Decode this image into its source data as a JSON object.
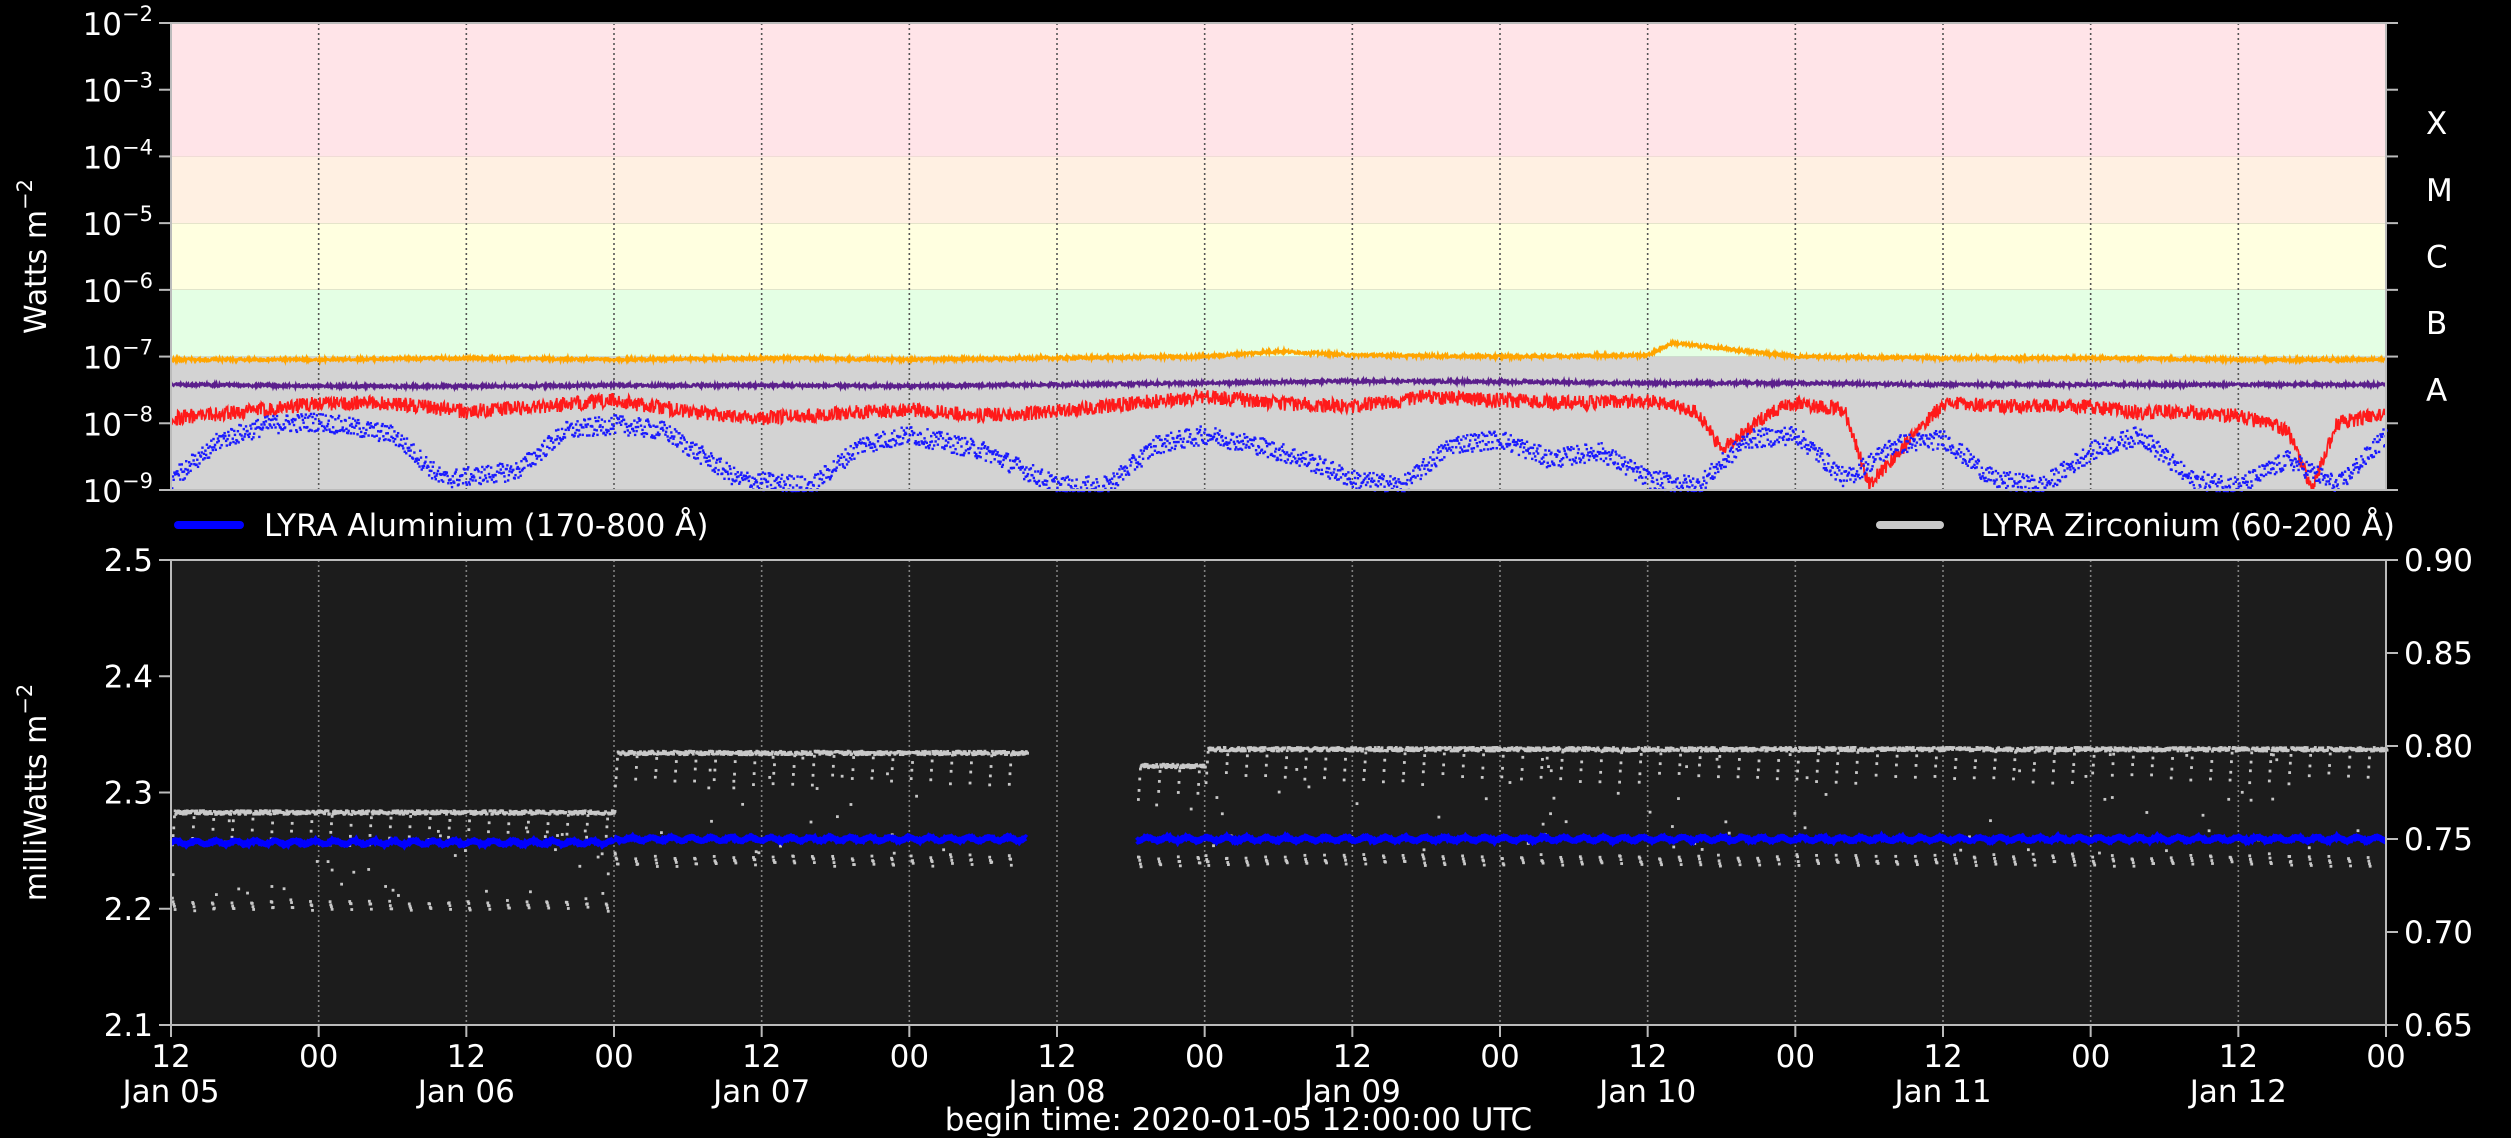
{
  "colors": {
    "background": "#000000",
    "panel_bg": "#1c1c1c",
    "axis": "#bbbbbb",
    "grid": "#808080",
    "text": "#ffffff",
    "aluminium": "#0000ff",
    "zirconium": "#c8c8c8",
    "xrs_orange": "#ffa500",
    "xrs_purple": "#5b1f8c",
    "xrs_red": "#ff1a1a",
    "xrs_blue": "#1a1aff",
    "band_X": "#ffe4e8",
    "band_M": "#fff0e2",
    "band_C": "#ffffe0",
    "band_B": "#e4ffe4",
    "band_A": "#d3d3d3"
  },
  "footer": {
    "begin_time_label": "begin time: 2020-01-05 12:00:00 UTC"
  },
  "chart_data": [
    {
      "type": "line",
      "panel": "top",
      "ylabel": "Watts m",
      "ylabel_sup": "−2",
      "yscale": "log",
      "ylim": [
        1e-09,
        0.01
      ],
      "yticks": [
        {
          "exp": "−9",
          "value": 1e-09
        },
        {
          "exp": "−8",
          "value": 1e-08
        },
        {
          "exp": "−7",
          "value": 1e-07
        },
        {
          "exp": "−6",
          "value": 1e-06
        },
        {
          "exp": "−5",
          "value": 1e-05
        },
        {
          "exp": "−4",
          "value": 0.0001
        },
        {
          "exp": "−3",
          "value": 0.001
        },
        {
          "exp": "−2",
          "value": 0.01
        }
      ],
      "ytick_base": "10",
      "xlim_hours": [
        0,
        180
      ],
      "flare_classes": [
        {
          "label": "X",
          "lower": 0.0001,
          "upper": 0.01
        },
        {
          "label": "M",
          "lower": 1e-05,
          "upper": 0.0001
        },
        {
          "label": "C",
          "lower": 1e-06,
          "upper": 1e-05
        },
        {
          "label": "B",
          "lower": 1e-07,
          "upper": 1e-06
        },
        {
          "label": "A",
          "lower": 1e-09,
          "upper": 1e-07
        }
      ],
      "series": [
        {
          "color_key": "xrs_orange",
          "hours": [
            0,
            12,
            24,
            36,
            48,
            60,
            72,
            84,
            90,
            96,
            108,
            120,
            122,
            132,
            144,
            156,
            168,
            180
          ],
          "values": [
            9e-08,
            9e-08,
            9.5e-08,
            9e-08,
            9.5e-08,
            9e-08,
            9.5e-08,
            1e-07,
            1.2e-07,
            1.05e-07,
            1e-07,
            1.05e-07,
            1.6e-07,
            1e-07,
            9.5e-08,
            9.5e-08,
            9e-08,
            9e-08
          ]
        },
        {
          "color_key": "xrs_purple",
          "hours": [
            0,
            12,
            24,
            36,
            48,
            60,
            72,
            84,
            96,
            108,
            120,
            132,
            144,
            156,
            168,
            180
          ],
          "values": [
            3.8e-08,
            3.6e-08,
            3.6e-08,
            3.7e-08,
            3.7e-08,
            3.6e-08,
            3.8e-08,
            4e-08,
            4.3e-08,
            4.2e-08,
            4e-08,
            4e-08,
            3.8e-08,
            3.8e-08,
            3.8e-08,
            3.8e-08
          ]
        },
        {
          "color_key": "xrs_red",
          "hours": [
            0,
            6,
            12,
            18,
            24,
            30,
            36,
            42,
            48,
            54,
            60,
            66,
            72,
            78,
            84,
            90,
            96,
            102,
            108,
            114,
            120,
            124,
            126,
            130,
            132,
            136,
            138,
            144,
            150,
            156,
            160,
            162,
            168,
            172,
            174,
            176,
            180
          ],
          "values": [
            1.2e-08,
            1.5e-08,
            2e-08,
            2e-08,
            1.5e-08,
            1.8e-08,
            2.2e-08,
            1.5e-08,
            1.2e-08,
            1.4e-08,
            1.6e-08,
            1.3e-08,
            1.5e-08,
            2e-08,
            2.5e-08,
            2e-08,
            1.8e-08,
            2.5e-08,
            2.2e-08,
            2e-08,
            2.2e-08,
            1.5e-08,
            4e-09,
            1.5e-08,
            2e-08,
            1.6e-08,
            1.2e-09,
            2e-08,
            1.8e-08,
            1.8e-08,
            1.4e-08,
            1.5e-08,
            1.3e-08,
            8e-09,
            1e-09,
            1e-08,
            1.4e-08
          ]
        },
        {
          "color_key": "xrs_blue",
          "hours": [
            0,
            4,
            8,
            12,
            18,
            22,
            28,
            32,
            36,
            40,
            46,
            52,
            56,
            60,
            66,
            72,
            76,
            80,
            84,
            88,
            92,
            96,
            100,
            104,
            108,
            112,
            116,
            120,
            124,
            128,
            132,
            136,
            140,
            144,
            148,
            152,
            156,
            160,
            164,
            168,
            172,
            176,
            180
          ],
          "values": [
            1.5e-09,
            6e-09,
            1e-08,
            1.1e-08,
            7e-09,
            1.5e-09,
            2e-09,
            8e-09,
            1e-08,
            8e-09,
            1.5e-09,
            1.2e-09,
            5e-09,
            7e-09,
            4e-09,
            1.2e-09,
            1.2e-09,
            5e-09,
            7e-09,
            5e-09,
            3e-09,
            1.5e-09,
            1.2e-09,
            5e-09,
            6e-09,
            3e-09,
            4e-09,
            1.5e-09,
            1.2e-09,
            6e-09,
            7e-09,
            1.5e-09,
            5e-09,
            6e-09,
            1.5e-09,
            1.2e-09,
            4e-09,
            7e-09,
            1.5e-09,
            1.2e-09,
            3e-09,
            1.2e-09,
            7e-09
          ]
        }
      ]
    },
    {
      "type": "scatter",
      "panel": "bottom",
      "ylabel": "milliWatts m",
      "ylabel_sup": "−2",
      "ylim": [
        2.1,
        2.5
      ],
      "yticks": [
        "2.1",
        "2.2",
        "2.3",
        "2.4",
        "2.5"
      ],
      "y2lim": [
        0.65,
        0.9
      ],
      "y2ticks": [
        "0.65",
        "0.70",
        "0.75",
        "0.80",
        "0.85",
        "0.90"
      ],
      "grid": "vertical",
      "xlim_hours": [
        0,
        180
      ],
      "xticks": [
        {
          "hour": 0,
          "top": "12",
          "bottom": "Jan 05"
        },
        {
          "hour": 12,
          "top": "00",
          "bottom": ""
        },
        {
          "hour": 24,
          "top": "12",
          "bottom": "Jan 06"
        },
        {
          "hour": 36,
          "top": "00",
          "bottom": ""
        },
        {
          "hour": 48,
          "top": "12",
          "bottom": "Jan 07"
        },
        {
          "hour": 60,
          "top": "00",
          "bottom": ""
        },
        {
          "hour": 72,
          "top": "12",
          "bottom": "Jan 08"
        },
        {
          "hour": 84,
          "top": "00",
          "bottom": ""
        },
        {
          "hour": 96,
          "top": "12",
          "bottom": "Jan 09"
        },
        {
          "hour": 108,
          "top": "00",
          "bottom": ""
        },
        {
          "hour": 120,
          "top": "12",
          "bottom": "Jan 10"
        },
        {
          "hour": 132,
          "top": "00",
          "bottom": ""
        },
        {
          "hour": 144,
          "top": "12",
          "bottom": "Jan 11"
        },
        {
          "hour": 156,
          "top": "00",
          "bottom": ""
        },
        {
          "hour": 168,
          "top": "12",
          "bottom": "Jan 12"
        },
        {
          "hour": 180,
          "top": "00",
          "bottom": ""
        }
      ],
      "legend": [
        {
          "name": "LYRA Aluminium (170-800 Å)",
          "color_key": "aluminium",
          "placement": "top-left"
        },
        {
          "name": "LYRA Zirconium (60-200 Å)",
          "color_key": "zirconium",
          "placement": "top-right"
        }
      ],
      "gap_hours": [
        69.5,
        78.5
      ],
      "series": [
        {
          "name": "LYRA Aluminium (170-800 Å)",
          "axis": "left",
          "segments": [
            {
              "hours": [
                0,
                36
              ],
              "level": 2.257
            },
            {
              "hours": [
                36,
                69.5
              ],
              "level": 2.26
            },
            {
              "hours": [
                78.5,
                180
              ],
              "level": 2.26
            }
          ]
        },
        {
          "name": "LYRA Zirconium (60-200 Å)",
          "axis": "right",
          "segments": [
            {
              "hours": [
                0,
                36
              ],
              "upper": 0.765,
              "lower": 0.718
            },
            {
              "hours": [
                36,
                69.5
              ],
              "upper": 0.797,
              "lower": 0.742
            },
            {
              "hours": [
                78.5,
                84
              ],
              "upper": 0.79,
              "lower": 0.742
            },
            {
              "hours": [
                84,
                180
              ],
              "upper": 0.799,
              "lower": 0.742
            }
          ]
        }
      ]
    }
  ]
}
